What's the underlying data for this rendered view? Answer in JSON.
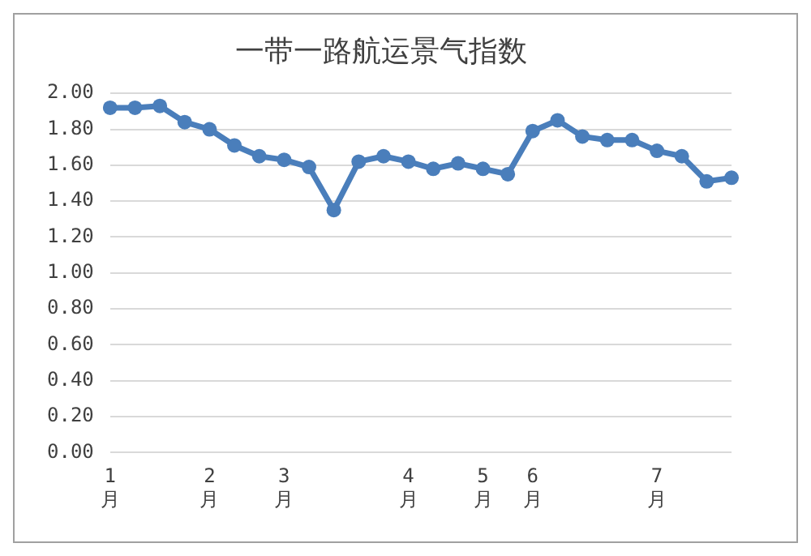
{
  "chart_data": {
    "type": "line",
    "title": "一带一路航运景气指数",
    "categories": [
      "1月",
      null,
      null,
      null,
      "2月",
      null,
      null,
      "3月",
      null,
      null,
      null,
      null,
      "4月",
      null,
      null,
      "5月",
      null,
      "6月",
      null,
      null,
      null,
      null,
      "7月",
      null,
      null,
      null
    ],
    "series": [
      {
        "color": "#4a7ebb",
        "values": [
          1.92,
          1.92,
          1.93,
          1.84,
          1.8,
          1.71,
          1.65,
          1.63,
          1.59,
          1.35,
          1.62,
          1.65,
          1.62,
          1.58,
          1.61,
          1.58,
          1.55,
          1.79,
          1.85,
          1.76,
          1.74,
          1.74,
          1.68,
          1.65,
          1.51,
          1.53
        ]
      }
    ],
    "ylim": [
      0,
      2
    ],
    "yticks": [
      {
        "value": 0,
        "label": "0.00"
      },
      {
        "value": 0.2,
        "label": "0.20"
      },
      {
        "value": 0.4,
        "label": "0.40"
      },
      {
        "value": 0.6,
        "label": "0.60"
      },
      {
        "value": 0.8,
        "label": "0.80"
      },
      {
        "value": 1,
        "label": "1.00"
      },
      {
        "value": 1.2,
        "label": "1.20"
      },
      {
        "value": 1.4,
        "label": "1.40"
      },
      {
        "value": 1.6,
        "label": "1.60"
      },
      {
        "value": 1.8,
        "label": "1.80"
      },
      {
        "value": 2,
        "label": "2.00"
      }
    ],
    "grid": "y",
    "marker": "circle",
    "line_style": "solid",
    "legend": false
  }
}
